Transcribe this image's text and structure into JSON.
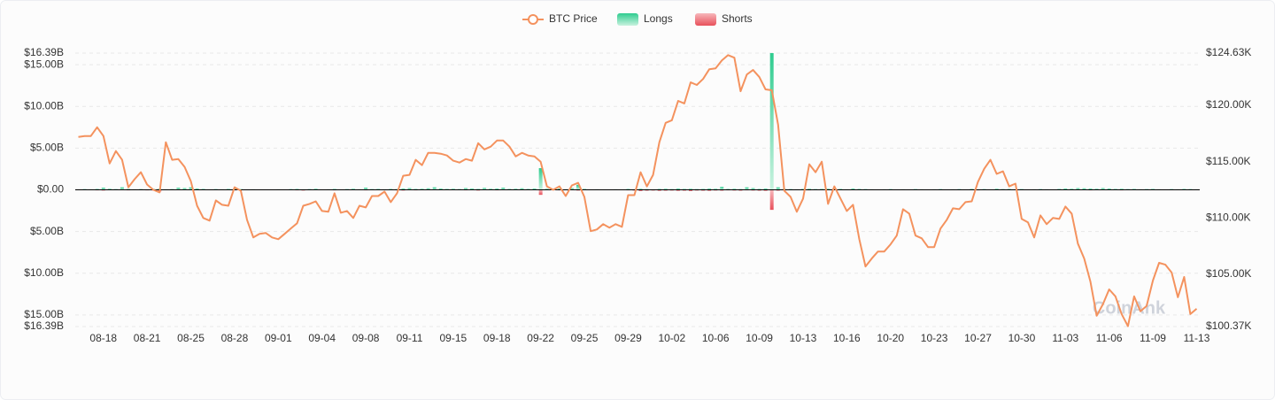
{
  "chart_data": {
    "type": "bar",
    "legend": "top",
    "grid": true,
    "watermark": "CoinAnk",
    "categories": [
      null,
      null,
      null,
      null,
      "08-18",
      null,
      null,
      null,
      null,
      null,
      null,
      "08-21",
      null,
      null,
      null,
      null,
      null,
      null,
      "08-25",
      null,
      null,
      null,
      null,
      null,
      null,
      "08-28",
      null,
      null,
      null,
      null,
      null,
      null,
      "09-01",
      null,
      null,
      null,
      null,
      null,
      null,
      "09-04",
      null,
      null,
      null,
      null,
      null,
      null,
      "09-08",
      null,
      null,
      null,
      null,
      null,
      null,
      "09-11",
      null,
      null,
      null,
      null,
      null,
      null,
      "09-15",
      null,
      null,
      null,
      null,
      null,
      null,
      "09-18",
      null,
      null,
      null,
      null,
      null,
      null,
      "09-22",
      null,
      null,
      null,
      null,
      null,
      null,
      "09-25",
      null,
      null,
      null,
      null,
      null,
      null,
      "09-29",
      null,
      null,
      null,
      null,
      null,
      null,
      "10-02",
      null,
      null,
      null,
      null,
      null,
      null,
      "10-06",
      null,
      null,
      null,
      null,
      null,
      null,
      "10-09",
      null,
      null,
      null,
      null,
      null,
      null,
      "10-13",
      null,
      null,
      null,
      null,
      null,
      null,
      "10-16",
      null,
      null,
      null,
      null,
      null,
      null,
      "10-20",
      null,
      null,
      null,
      null,
      null,
      null,
      "10-23",
      null,
      null,
      null,
      null,
      null,
      null,
      "10-27",
      null,
      null,
      null,
      null,
      null,
      null,
      "10-30",
      null,
      null,
      null,
      null,
      null,
      null,
      "11-03",
      null,
      null,
      null,
      null,
      null,
      null,
      "11-06",
      null,
      null,
      null,
      null,
      null,
      null,
      "11-09",
      null,
      null,
      null,
      null,
      null,
      null,
      "11-13"
    ],
    "ylim": [
      -16.39,
      16.39
    ],
    "yticks": [
      {
        "value": 16.39,
        "label": "$16.39B"
      },
      {
        "value": 15,
        "label": "$15.00B"
      },
      {
        "value": 10,
        "label": "$10.00B"
      },
      {
        "value": 5,
        "label": "$5.00B"
      },
      {
        "value": 0,
        "label": "$0.00"
      },
      {
        "value": -5,
        "label": "$5.00B"
      },
      {
        "value": -10,
        "label": "$10.00B"
      },
      {
        "value": -15,
        "label": "$15.00B"
      },
      {
        "value": -16.39,
        "label": "$16.39B"
      }
    ],
    "y2lim": [
      100.37,
      124.63
    ],
    "y2ticks": [
      {
        "value": 124.63,
        "label": "$124.63K"
      },
      {
        "value": 120,
        "label": "$120.00K"
      },
      {
        "value": 115,
        "label": "$115.00K"
      },
      {
        "value": 110,
        "label": "$110.00K"
      },
      {
        "value": 105,
        "label": "$105.00K"
      },
      {
        "value": 100.37,
        "label": "$100.37K"
      }
    ],
    "series": [
      {
        "name": "BTC Price",
        "type": "line",
        "axis": "y2",
        "color": "#f4925e",
        "values": [
          117.19,
          117.27,
          117.27,
          118.05,
          117.27,
          114.84,
          115.94,
          115.16,
          112.73,
          113.44,
          114.06,
          112.97,
          112.5,
          112.27,
          116.72,
          115.16,
          115.23,
          114.53,
          113.28,
          111.09,
          110.0,
          109.77,
          111.56,
          111.17,
          111.09,
          112.73,
          112.42,
          109.84,
          108.28,
          108.59,
          108.67,
          108.28,
          108.12,
          108.59,
          109.06,
          109.53,
          111.09,
          111.25,
          111.48,
          110.62,
          110.55,
          112.19,
          110.47,
          110.62,
          110.0,
          111.09,
          110.94,
          111.95,
          111.95,
          112.34,
          111.41,
          112.19,
          113.75,
          113.83,
          115.16,
          114.69,
          115.78,
          115.78,
          115.7,
          115.55,
          115.08,
          114.92,
          115.23,
          115.08,
          116.64,
          116.09,
          116.33,
          116.87,
          116.87,
          116.33,
          115.47,
          115.78,
          115.55,
          115.47,
          115.0,
          112.81,
          112.5,
          112.81,
          111.95,
          112.89,
          113.12,
          111.87,
          108.83,
          108.98,
          109.45,
          109.14,
          109.45,
          109.22,
          112.03,
          112.03,
          114.06,
          112.81,
          113.83,
          116.72,
          118.44,
          118.67,
          120.39,
          120.16,
          122.03,
          121.8,
          122.34,
          123.2,
          123.28,
          123.98,
          124.45,
          124.22,
          121.25,
          122.73,
          123.13,
          122.5,
          121.41,
          121.33,
          118.28,
          112.42,
          111.87,
          110.55,
          111.72,
          114.77,
          114.06,
          115.0,
          111.25,
          112.81,
          111.72,
          110.62,
          111.17,
          108.12,
          105.7,
          106.41,
          107.03,
          107.03,
          107.66,
          108.44,
          110.78,
          110.39,
          108.44,
          108.2,
          107.42,
          107.42,
          109.06,
          109.84,
          110.86,
          110.78,
          111.41,
          111.48,
          113.2,
          114.37,
          115.16,
          113.91,
          114.14,
          112.81,
          113.05,
          109.92,
          109.61,
          108.28,
          110.23,
          109.45,
          110.0,
          109.92,
          111.02,
          110.39,
          107.73,
          106.41,
          104.37,
          101.33,
          102.34,
          103.67,
          103.05,
          101.48,
          100.4,
          103.05,
          101.72,
          102.19,
          104.45,
          106.02,
          105.86,
          105.16,
          102.97,
          104.77,
          101.48,
          101.95
        ]
      },
      {
        "name": "Longs",
        "type": "bar",
        "color": "#2ecc8f",
        "values": [
          0.05,
          0.08,
          0.06,
          0.1,
          0.25,
          0.12,
          0.08,
          0.3,
          0.1,
          0.06,
          0.08,
          0.05,
          0.1,
          0.12,
          0.06,
          0.08,
          0.25,
          0.2,
          0.3,
          0.15,
          0.1,
          0.05,
          0.08,
          0.06,
          0.1,
          0.12,
          0.08,
          0.05,
          0.06,
          0.05,
          0.04,
          0.05,
          0.06,
          0.05,
          0.08,
          0.1,
          0.06,
          0.08,
          0.12,
          0.05,
          0.06,
          0.1,
          0.05,
          0.08,
          0.12,
          0.06,
          0.25,
          0.08,
          0.1,
          0.06,
          0.1,
          0.08,
          0.15,
          0.2,
          0.1,
          0.12,
          0.18,
          0.3,
          0.15,
          0.1,
          0.12,
          0.08,
          0.2,
          0.15,
          0.1,
          0.22,
          0.12,
          0.15,
          0.25,
          0.1,
          0.12,
          0.18,
          0.1,
          0.15,
          2.6,
          0.12,
          0.08,
          0.15,
          0.06,
          0.2,
          0.6,
          0.1,
          0.05,
          0.06,
          0.04,
          0.05,
          0.06,
          0.05,
          0.1,
          0.06,
          0.12,
          0.08,
          0.06,
          0.1,
          0.12,
          0.08,
          0.15,
          0.1,
          0.12,
          0.08,
          0.1,
          0.15,
          0.12,
          0.35,
          0.1,
          0.12,
          0.08,
          0.3,
          0.2,
          0.1,
          0.15,
          16.39,
          0.3,
          0.1,
          0.08,
          0.06,
          0.1,
          0.12,
          0.08,
          0.1,
          0.12,
          0.08,
          0.1,
          0.06,
          0.15,
          0.1,
          0.08,
          0.06,
          0.05,
          0.06,
          0.08,
          0.05,
          0.06,
          0.05,
          0.08,
          0.06,
          0.05,
          0.06,
          0.08,
          0.05,
          0.06,
          0.08,
          0.05,
          0.1,
          0.06,
          0.08,
          0.05,
          0.12,
          0.08,
          0.1,
          0.06,
          0.08,
          0.05,
          0.06,
          0.08,
          0.06,
          0.05,
          0.1,
          0.15,
          0.12,
          0.2,
          0.18,
          0.15,
          0.12,
          0.2,
          0.15,
          0.1,
          0.12,
          0.08,
          0.1,
          0.06,
          0.08,
          0.1,
          0.06,
          0.05,
          0.08,
          0.06,
          0.1,
          0.08,
          0.06
        ]
      },
      {
        "name": "Shorts",
        "type": "bar",
        "color": "#e8505b",
        "values": [
          -0.05,
          -0.03,
          -0.04,
          -0.06,
          -0.08,
          -0.05,
          -0.04,
          -0.03,
          -0.06,
          -0.05,
          -0.04,
          -0.06,
          -0.08,
          -0.2,
          -0.05,
          -0.04,
          -0.03,
          -0.05,
          -0.04,
          -0.03,
          -0.04,
          -0.03,
          -0.05,
          -0.04,
          -0.03,
          -0.06,
          -0.04,
          -0.05,
          -0.03,
          -0.04,
          -0.03,
          -0.04,
          -0.05,
          -0.03,
          -0.04,
          -0.06,
          -0.08,
          -0.05,
          -0.04,
          -0.03,
          -0.04,
          -0.06,
          -0.03,
          -0.04,
          -0.05,
          -0.04,
          -0.06,
          -0.05,
          -0.04,
          -0.03,
          -0.05,
          -0.06,
          -0.08,
          -0.05,
          -0.06,
          -0.04,
          -0.05,
          -0.04,
          -0.03,
          -0.04,
          -0.05,
          -0.04,
          -0.06,
          -0.05,
          -0.08,
          -0.05,
          -0.04,
          -0.06,
          -0.05,
          -0.04,
          -0.05,
          -0.04,
          -0.03,
          -0.05,
          -0.6,
          -0.05,
          -0.04,
          -0.06,
          -0.05,
          -0.04,
          -0.08,
          -0.05,
          -0.04,
          -0.03,
          -0.04,
          -0.03,
          -0.04,
          -0.05,
          -0.06,
          -0.08,
          -0.15,
          -0.1,
          -0.08,
          -0.12,
          -0.1,
          -0.08,
          -0.12,
          -0.1,
          -0.15,
          -0.08,
          -0.1,
          -0.12,
          -0.08,
          -0.1,
          -0.06,
          -0.08,
          -0.1,
          -0.06,
          -0.08,
          -0.1,
          -0.12,
          -2.4,
          -0.1,
          -0.06,
          -0.05,
          -0.04,
          -0.05,
          -0.06,
          -0.04,
          -0.05,
          -0.04,
          -0.05,
          -0.03,
          -0.04,
          -0.05,
          -0.03,
          -0.04,
          -0.03,
          -0.04,
          -0.05,
          -0.04,
          -0.03,
          -0.05,
          -0.04,
          -0.03,
          -0.04,
          -0.05,
          -0.03,
          -0.04,
          -0.03,
          -0.04,
          -0.05,
          -0.03,
          -0.04,
          -0.06,
          -0.05,
          -0.04,
          -0.03,
          -0.05,
          -0.04,
          -0.03,
          -0.04,
          -0.05,
          -0.03,
          -0.04,
          -0.05,
          -0.04,
          -0.03,
          -0.05,
          -0.04,
          -0.05,
          -0.04,
          -0.06,
          -0.05,
          -0.04,
          -0.05,
          -0.04,
          -0.06,
          -0.05,
          -0.04,
          -0.03,
          -0.04,
          -0.05,
          -0.04,
          -0.03,
          -0.04,
          -0.05,
          -0.03,
          -0.04,
          -0.03
        ]
      }
    ]
  }
}
